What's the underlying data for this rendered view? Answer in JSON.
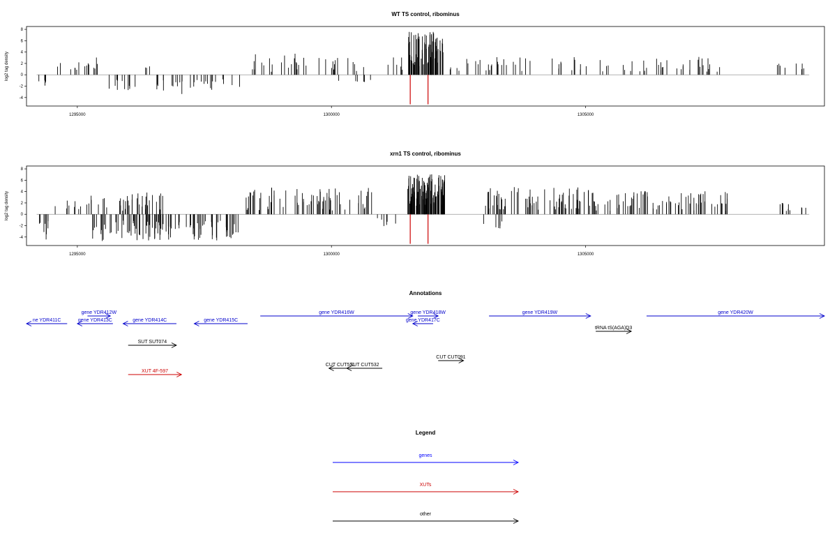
{
  "chart_data": [
    {
      "type": "bar",
      "title": "WT TS control, ribominus",
      "ylabel": "log2 tag density",
      "xlim": [
        1294000,
        1309700
      ],
      "ylim": [
        -5.5,
        8.5
      ],
      "yticks": [
        -4,
        -2,
        0,
        2,
        4,
        6,
        8
      ],
      "xticks": [
        1295000,
        1300000,
        1305000
      ],
      "x_tick_labels": [
        "1295000",
        "1300000",
        "1305000"
      ],
      "y_tick_labels": [
        "-4",
        "-2",
        "0",
        "2",
        "4",
        "6",
        "8"
      ],
      "bar_color": "#000000",
      "highlight_color": "#cc0000",
      "highlight_bars": [
        {
          "x": 1301550,
          "value": -5.2
        },
        {
          "x": 1301900,
          "value": -5.2
        }
      ],
      "segments": [
        {
          "x_start": 1294200,
          "x_end": 1294450,
          "min": -2.3,
          "max": -1.0,
          "density": 5,
          "sign": -1
        },
        {
          "x_start": 1294550,
          "x_end": 1295100,
          "min": 0.5,
          "max": 2.5,
          "density": 7,
          "sign": 1
        },
        {
          "x_start": 1295100,
          "x_end": 1295400,
          "min": 0.6,
          "max": 3.4,
          "density": 8,
          "sign": 1
        },
        {
          "x_start": 1295400,
          "x_end": 1296300,
          "min": -2.7,
          "max": -0.8,
          "density": 12,
          "sign": -1
        },
        {
          "x_start": 1296300,
          "x_end": 1296450,
          "min": 1.0,
          "max": 2.0,
          "density": 3,
          "sign": 1
        },
        {
          "x_start": 1296550,
          "x_end": 1298200,
          "min": -3.4,
          "max": -0.8,
          "density": 28,
          "sign": -1
        },
        {
          "x_start": 1298300,
          "x_end": 1299800,
          "min": 0.5,
          "max": 4.0,
          "density": 22,
          "sign": 1
        },
        {
          "x_start": 1299800,
          "x_end": 1300700,
          "min": 0.6,
          "max": 3.0,
          "density": 12,
          "sign": 1
        },
        {
          "x_start": 1300000,
          "x_end": 1301100,
          "min": -1.6,
          "max": -0.5,
          "density": 6,
          "sign": -1
        },
        {
          "x_start": 1301100,
          "x_end": 1301400,
          "min": 0.8,
          "max": 3.2,
          "density": 6,
          "sign": 1
        },
        {
          "x_start": 1301500,
          "x_end": 1302200,
          "min": 1.5,
          "max": 7.6,
          "density": 80,
          "sign": 1
        },
        {
          "x_start": 1302300,
          "x_end": 1305000,
          "min": 0.6,
          "max": 3.2,
          "density": 36,
          "sign": 1
        },
        {
          "x_start": 1305000,
          "x_end": 1307000,
          "min": 0.6,
          "max": 3.0,
          "density": 24,
          "sign": 1
        },
        {
          "x_start": 1307000,
          "x_end": 1307700,
          "min": 0.5,
          "max": 3.2,
          "density": 14,
          "sign": 1
        },
        {
          "x_start": 1308700,
          "x_end": 1309400,
          "min": 0.8,
          "max": 2.2,
          "density": 8,
          "sign": 1
        }
      ]
    },
    {
      "type": "bar",
      "title": "xrn1 TS control, ribominus",
      "ylabel": "log2 tag density",
      "xlim": [
        1294000,
        1309700
      ],
      "ylim": [
        -5.5,
        8.5
      ],
      "yticks": [
        -4,
        -2,
        0,
        2,
        4,
        6,
        8
      ],
      "xticks": [
        1295000,
        1300000,
        1305000
      ],
      "x_tick_labels": [
        "1295000",
        "1300000",
        "1305000"
      ],
      "y_tick_labels": [
        "-4",
        "-2",
        "0",
        "2",
        "4",
        "6",
        "8"
      ],
      "bar_color": "#000000",
      "highlight_color": "#cc0000",
      "highlight_bars": [
        {
          "x": 1301550,
          "value": -5.2
        },
        {
          "x": 1301900,
          "value": -5.2
        }
      ],
      "segments": [
        {
          "x_start": 1294200,
          "x_end": 1294450,
          "min": -4.5,
          "max": -1.2,
          "density": 8,
          "sign": -1
        },
        {
          "x_start": 1294550,
          "x_end": 1296000,
          "min": 0.6,
          "max": 3.3,
          "density": 24,
          "sign": 1
        },
        {
          "x_start": 1295200,
          "x_end": 1296500,
          "min": -4.8,
          "max": -1.0,
          "density": 40,
          "sign": -1
        },
        {
          "x_start": 1296000,
          "x_end": 1296700,
          "min": 0.8,
          "max": 4.2,
          "density": 22,
          "sign": 1
        },
        {
          "x_start": 1296500,
          "x_end": 1298200,
          "min": -4.6,
          "max": -1.0,
          "density": 60,
          "sign": -1
        },
        {
          "x_start": 1298300,
          "x_end": 1300800,
          "min": 0.6,
          "max": 4.8,
          "density": 70,
          "sign": 1
        },
        {
          "x_start": 1300800,
          "x_end": 1301300,
          "min": -2.2,
          "max": -0.6,
          "density": 6,
          "sign": -1
        },
        {
          "x_start": 1301500,
          "x_end": 1302250,
          "min": 1.5,
          "max": 7.2,
          "density": 110,
          "sign": 1
        },
        {
          "x_start": 1302900,
          "x_end": 1303400,
          "min": -2.8,
          "max": -0.8,
          "density": 6,
          "sign": -1
        },
        {
          "x_start": 1303000,
          "x_end": 1305200,
          "min": 0.8,
          "max": 4.8,
          "density": 80,
          "sign": 1
        },
        {
          "x_start": 1305200,
          "x_end": 1307800,
          "min": 0.6,
          "max": 4.4,
          "density": 70,
          "sign": 1
        },
        {
          "x_start": 1308800,
          "x_end": 1309400,
          "min": 0.5,
          "max": 2.2,
          "density": 12,
          "sign": 1
        }
      ]
    }
  ],
  "annotations": {
    "title": "Annotations",
    "items": [
      {
        "label": "ne YDR411C",
        "x_start": 1294000,
        "x_end": 1294800,
        "strand": "-",
        "row": 2,
        "color": "#0000cc"
      },
      {
        "label": "gene YDR412W",
        "x_start": 1295200,
        "x_end": 1295650,
        "strand": "+",
        "row": 1,
        "color": "#0000cc"
      },
      {
        "label": "gene YDR413C",
        "x_start": 1295000,
        "x_end": 1295700,
        "strand": "-",
        "row": 2,
        "color": "#0000cc"
      },
      {
        "label": "gene YDR414C",
        "x_start": 1295900,
        "x_end": 1296950,
        "strand": "-",
        "row": 2,
        "color": "#0000cc"
      },
      {
        "label": "gene YDR415C",
        "x_start": 1297300,
        "x_end": 1298350,
        "strand": "-",
        "row": 2,
        "color": "#0000cc"
      },
      {
        "label": "gene YDR416W",
        "x_start": 1298600,
        "x_end": 1301600,
        "strand": "+",
        "row": 1,
        "color": "#0000cc"
      },
      {
        "label": "gene YDR418W",
        "x_start": 1301700,
        "x_end": 1302100,
        "strand": "+",
        "row": 1,
        "color": "#0000cc"
      },
      {
        "label": "gene YDR417C",
        "x_start": 1301600,
        "x_end": 1302000,
        "strand": "-",
        "row": 2,
        "color": "#0000cc"
      },
      {
        "label": "gene YDR419W",
        "x_start": 1303100,
        "x_end": 1305100,
        "strand": "+",
        "row": 1,
        "color": "#0000cc"
      },
      {
        "label": "gene YDR420W",
        "x_start": 1306200,
        "x_end": 1309700,
        "strand": "+",
        "row": 1,
        "color": "#0000cc"
      },
      {
        "label": "tRNA tS(AGA)D3",
        "x_start": 1305200,
        "x_end": 1305900,
        "strand": "+",
        "row": 3,
        "color": "#000000"
      },
      {
        "label": "SUT SUT074",
        "x_start": 1296000,
        "x_end": 1296950,
        "strand": "+",
        "row": 4,
        "color": "#000000"
      },
      {
        "label": "CUT CUT531",
        "x_start": 1299950,
        "x_end": 1300400,
        "strand": "-",
        "row": 6,
        "color": "#000000"
      },
      {
        "label": "SUT CUT532",
        "x_start": 1300300,
        "x_end": 1301000,
        "strand": "-",
        "row": 6,
        "color": "#000000"
      },
      {
        "label": "CUT CUT091",
        "x_start": 1302100,
        "x_end": 1302600,
        "strand": "+",
        "row": 5,
        "color": "#000000"
      },
      {
        "label": "XUT 4F-597",
        "x_start": 1296000,
        "x_end": 1297050,
        "strand": "+",
        "row": 7,
        "color": "#cc0000"
      }
    ]
  },
  "legend": {
    "title": "Legend",
    "items": [
      {
        "label": "genes",
        "color": "#0000ff"
      },
      {
        "label": "XUTs",
        "color": "#cc0000"
      },
      {
        "label": "other",
        "color": "#000000"
      }
    ]
  }
}
